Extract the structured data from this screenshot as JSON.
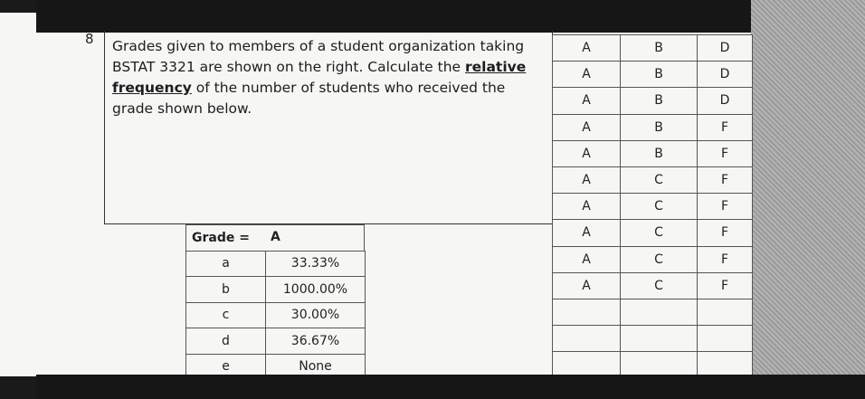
{
  "question": {
    "number": "8",
    "parts": [
      "Grades given to members of a student organization taking BSTAT 3321 are shown on the right. Calculate the ",
      "relative frequency",
      " of the number of students who received the grade shown below."
    ]
  },
  "grades": {
    "columns": [
      [
        "A",
        "A",
        "A",
        "A",
        "A",
        "A",
        "A",
        "A",
        "A",
        "A"
      ],
      [
        "B",
        "B",
        "B",
        "B",
        "B",
        "C",
        "C",
        "C",
        "C",
        "C"
      ],
      [
        "D",
        "D",
        "D",
        "F",
        "F",
        "F",
        "F",
        "F",
        "F",
        "F"
      ]
    ]
  },
  "answer_table": {
    "header": [
      "Grade =",
      "A"
    ],
    "rows": [
      [
        "a",
        "33.33%"
      ],
      [
        "b",
        "1000.00%"
      ],
      [
        "c",
        "30.00%"
      ],
      [
        "d",
        "36.67%"
      ],
      [
        "e",
        "None"
      ]
    ]
  }
}
